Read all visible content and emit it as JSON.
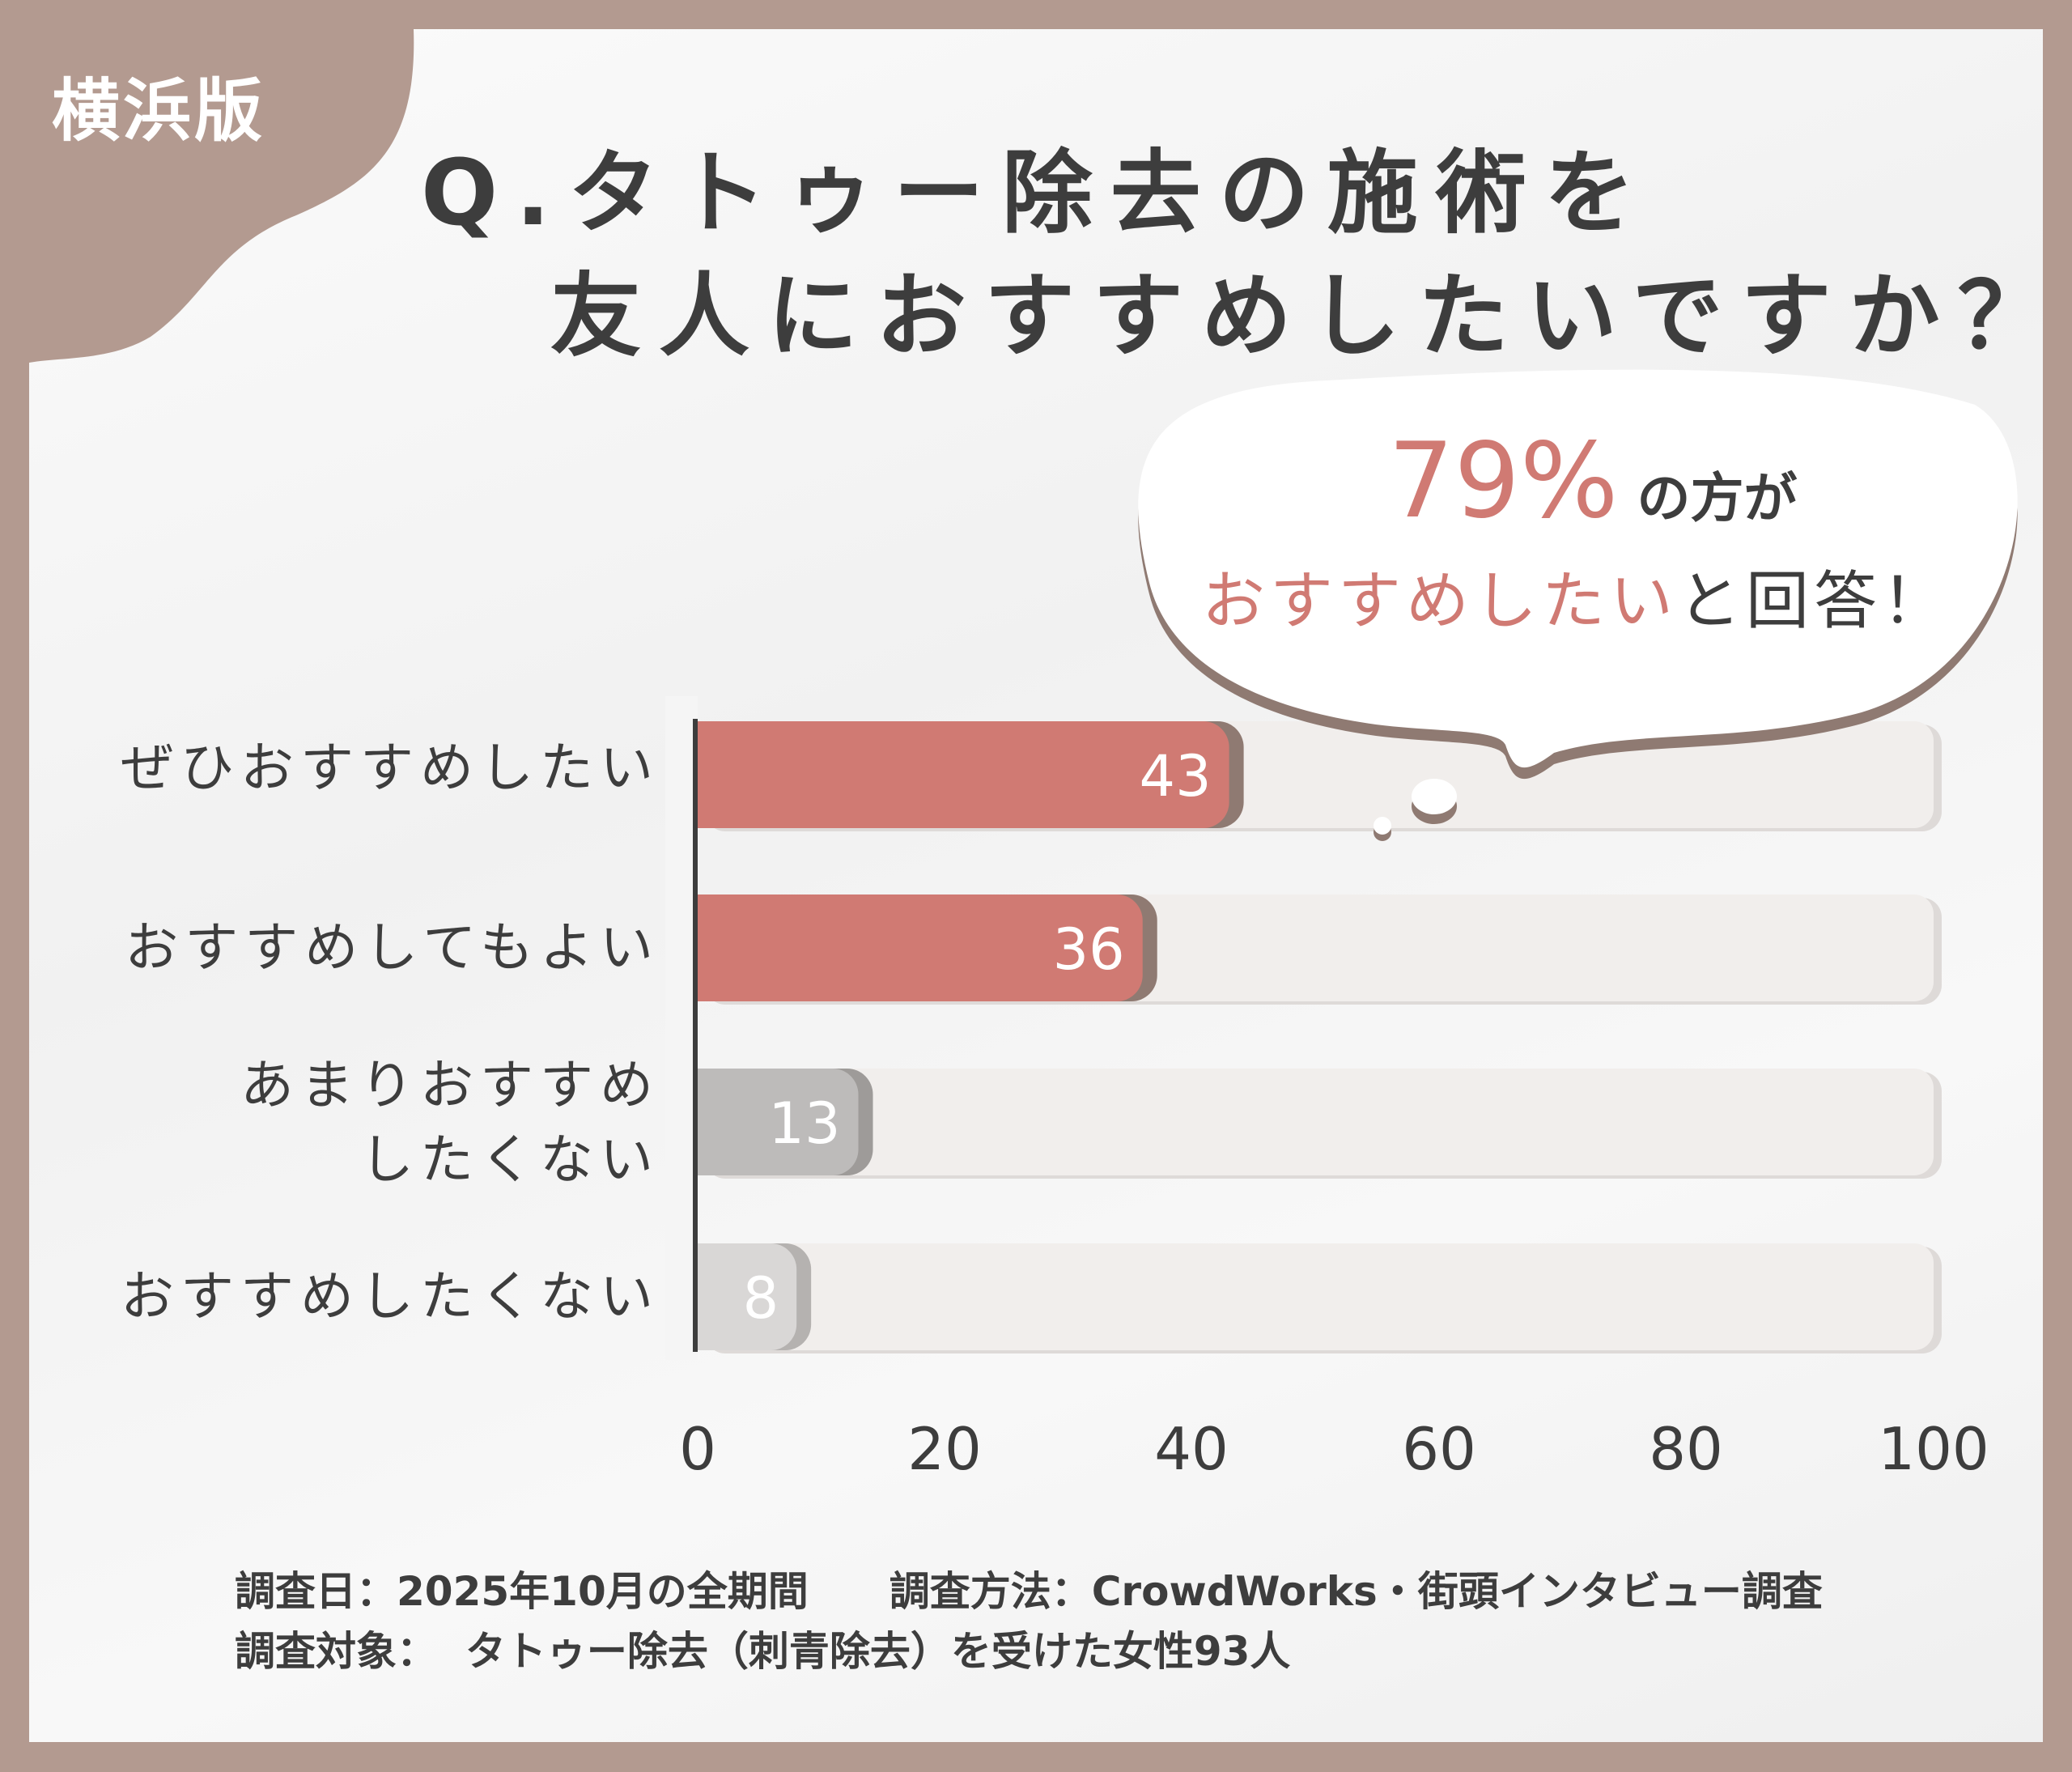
{
  "badge": "横浜版",
  "title": {
    "line1": "Q.タトゥー除去の施術を",
    "line2": "友人におすすめしたいですか？"
  },
  "callout": {
    "percent": "79%",
    "line1_rest": "の方が",
    "line2_highlight": "おすすめしたい",
    "line2_rest": "と回答！"
  },
  "colors": {
    "frame": "#b39a90",
    "primary_bar": "#d07a73",
    "secondary_bar": "#bdbbba",
    "light_bar": "#d9d7d6",
    "track": "#f1eeec",
    "text": "#3d3d3d"
  },
  "chart_data": {
    "type": "bar",
    "orientation": "horizontal",
    "categories": [
      "ぜひおすすめしたい",
      "おすすめしてもよい",
      "あまりおすすめ\nしたくない",
      "おすすめしたくない"
    ],
    "values": [
      43,
      36,
      13,
      8
    ],
    "xlim": [
      0,
      100
    ],
    "xticks": [
      "0",
      "20",
      "40",
      "60",
      "80",
      "100"
    ],
    "grid": false
  },
  "footer": {
    "line1": "調査日：2025年10月の全期間　　調査方法：CrowdWorks・街頭インタビュー調査",
    "line2": "調査対象：  タトゥー除去（刺青除去）を受けた女性93人"
  }
}
